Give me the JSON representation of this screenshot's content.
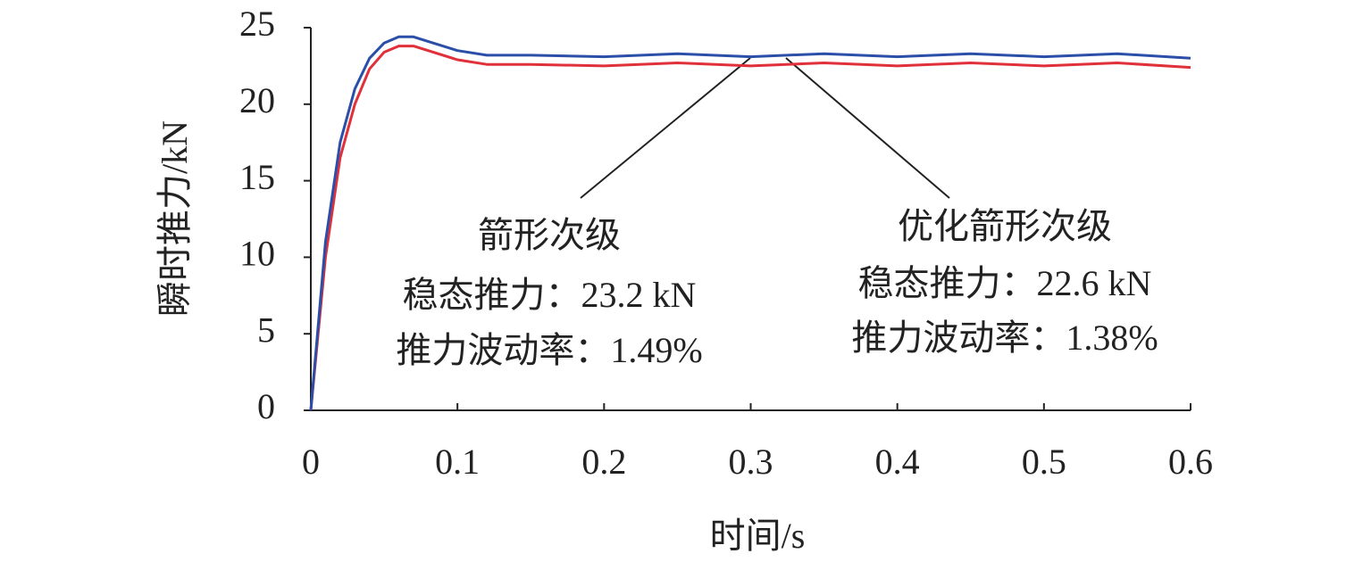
{
  "chart_data": {
    "type": "line",
    "x_label": "时间/s",
    "y_label": "瞬时推力/kN",
    "x": [
      0,
      0.01,
      0.02,
      0.03,
      0.04,
      0.05,
      0.06,
      0.07,
      0.08,
      0.1,
      0.12,
      0.15,
      0.2,
      0.25,
      0.3,
      0.35,
      0.4,
      0.45,
      0.5,
      0.55,
      0.6
    ],
    "series": [
      {
        "name": "箭形次级",
        "color": "#2b4ea8",
        "values": [
          0,
          11,
          17.5,
          21,
          23,
          24,
          24.4,
          24.4,
          24.1,
          23.5,
          23.2,
          23.2,
          23.1,
          23.3,
          23.1,
          23.3,
          23.1,
          23.3,
          23.1,
          23.3,
          23.0
        ]
      },
      {
        "name": "优化箭形次级",
        "color": "#e0303a",
        "values": [
          0,
          10,
          16.5,
          20,
          22.3,
          23.4,
          23.8,
          23.8,
          23.5,
          22.9,
          22.6,
          22.6,
          22.5,
          22.7,
          22.5,
          22.7,
          22.5,
          22.7,
          22.5,
          22.7,
          22.4
        ]
      }
    ],
    "annotations": [
      "稳态推力：23.2 kN",
      "推力波动率：1.49%",
      "稳态推力：22.6 kN",
      "推力波动率：1.38%"
    ],
    "xlim": [
      0,
      0.6
    ],
    "xticks": [
      0,
      0.1,
      0.2,
      0.3,
      0.4,
      0.5,
      0.6
    ],
    "ylim": [
      0,
      25
    ],
    "yticks": [
      0,
      5,
      10,
      15,
      20,
      25
    ],
    "grid": false
  }
}
